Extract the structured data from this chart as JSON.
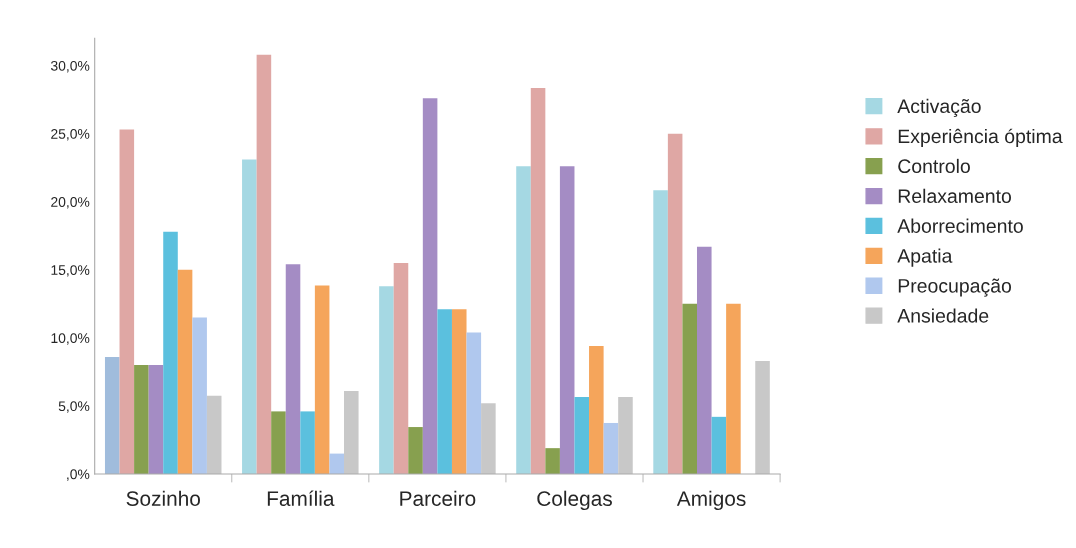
{
  "chart_data": {
    "type": "bar",
    "categories": [
      "Sozinho",
      "Família",
      "Parceiro",
      "Colegas",
      "Amigos"
    ],
    "series": [
      {
        "name": "Activação",
        "color": "#a5d8e3",
        "colors": [
          "#a0bcdc",
          "#a5d8e3",
          "#a5d8e3",
          "#a5d8e3",
          "#a5d8e3"
        ],
        "values": [
          8.6,
          23.1,
          13.8,
          22.6,
          20.85
        ]
      },
      {
        "name": "Experiência óptima",
        "color": "#dfa7a4",
        "values": [
          25.3,
          30.8,
          15.5,
          28.35,
          25.0
        ]
      },
      {
        "name": "Controlo",
        "color": "#87a04f",
        "values": [
          8.0,
          4.6,
          3.45,
          1.9,
          12.5
        ]
      },
      {
        "name": "Relaxamento",
        "color": "#a48cc4",
        "values": [
          8.0,
          15.4,
          27.6,
          22.6,
          16.7
        ]
      },
      {
        "name": "Aborrecimento",
        "color": "#5bc0de",
        "values": [
          17.8,
          4.6,
          12.1,
          5.65,
          4.2
        ]
      },
      {
        "name": "Apatia",
        "color": "#f5a55b",
        "values": [
          15.0,
          13.85,
          12.1,
          9.4,
          12.5
        ]
      },
      {
        "name": "Preocupação",
        "color": "#b0c8ee",
        "values": [
          11.5,
          1.5,
          10.4,
          3.75,
          0
        ]
      },
      {
        "name": "Ansiedade",
        "color": "#c8c8c8",
        "values": [
          5.75,
          6.1,
          5.2,
          5.65,
          8.3
        ]
      }
    ],
    "ylim": [
      0,
      32
    ],
    "yticks": [
      {
        "value": 0,
        "label": ",0%"
      },
      {
        "value": 5,
        "label": "5,0%"
      },
      {
        "value": 10,
        "label": "10,0%"
      },
      {
        "value": 15,
        "label": "15,0%"
      },
      {
        "value": 20,
        "label": "20,0%"
      },
      {
        "value": 25,
        "label": "25,0%"
      },
      {
        "value": 30,
        "label": "30,0%"
      }
    ],
    "grid": false,
    "legend": "right"
  }
}
